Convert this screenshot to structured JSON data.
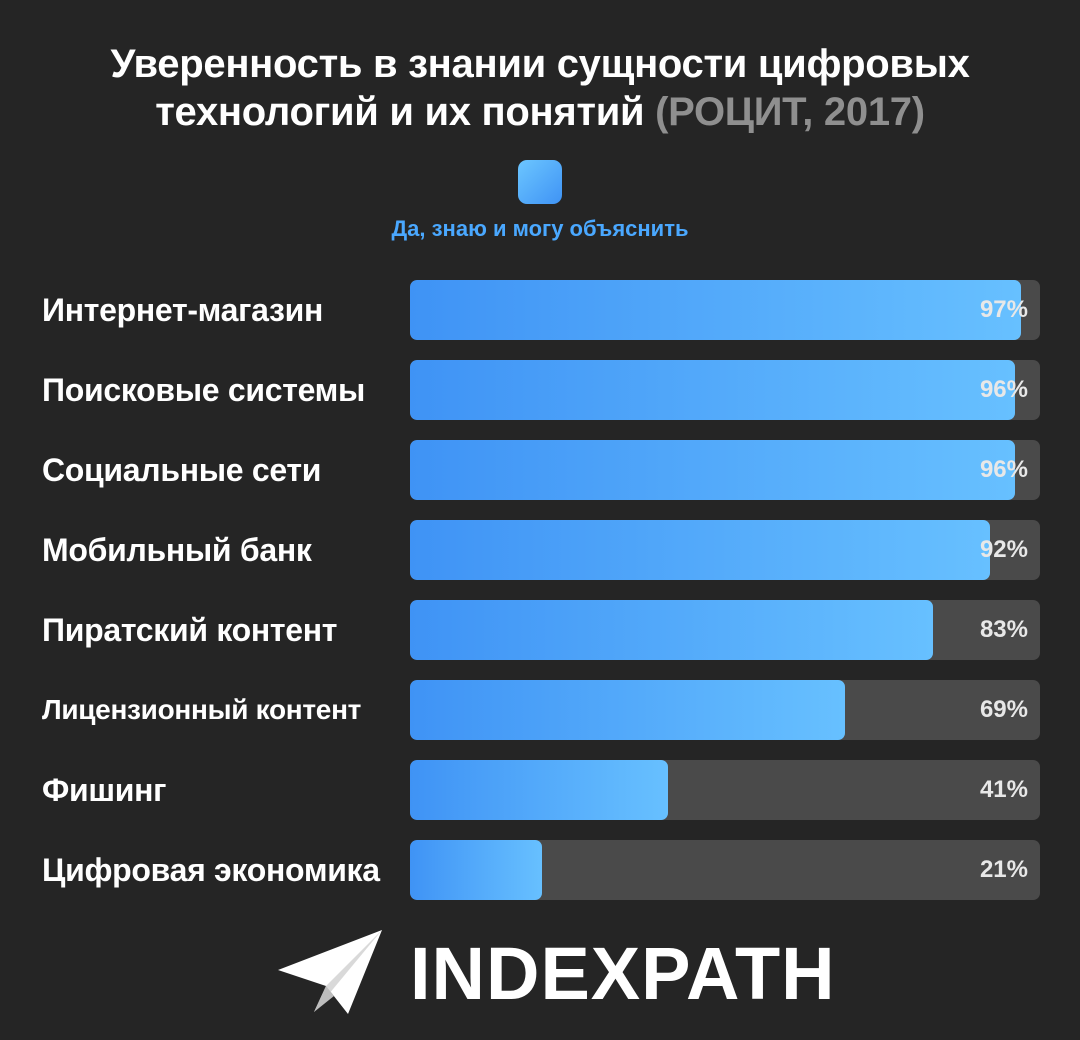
{
  "header": {
    "title_line1": "Уверенность в знании сущности цифровых",
    "title_line2": "технологий и их понятий",
    "title_source": "(РОЦИТ, 2017)"
  },
  "legend": {
    "label": "Да, знаю и могу объяснить"
  },
  "colors": {
    "accent": "#4aa8ff",
    "bar_start": "#3f93f5",
    "bar_end": "#67c0ff",
    "track": "#4a4a4a",
    "background": "#252525"
  },
  "chart_data": {
    "type": "bar",
    "orientation": "horizontal",
    "title": "Уверенность в знании сущности цифровых технологий и их понятий (РОЦИТ, 2017)",
    "categories": [
      "Интернет-магазин",
      "Поисковые системы",
      "Социальные сети",
      "Мобильный банк",
      "Пиратский контент",
      "Лицензионный контент",
      "Фишинг",
      "Цифровая экономика"
    ],
    "series": [
      {
        "name": "Да, знаю и могу объяснить",
        "values": [
          97,
          96,
          96,
          92,
          83,
          69,
          41,
          21
        ]
      }
    ],
    "value_labels": [
      "97%",
      "96%",
      "96%",
      "92%",
      "83%",
      "69%",
      "41%",
      "21%"
    ],
    "xlim": [
      0,
      100
    ],
    "legend_position": "top-center",
    "grid": false
  },
  "brand": {
    "name": "INDEXPATH",
    "icon": "paper-plane-icon"
  }
}
